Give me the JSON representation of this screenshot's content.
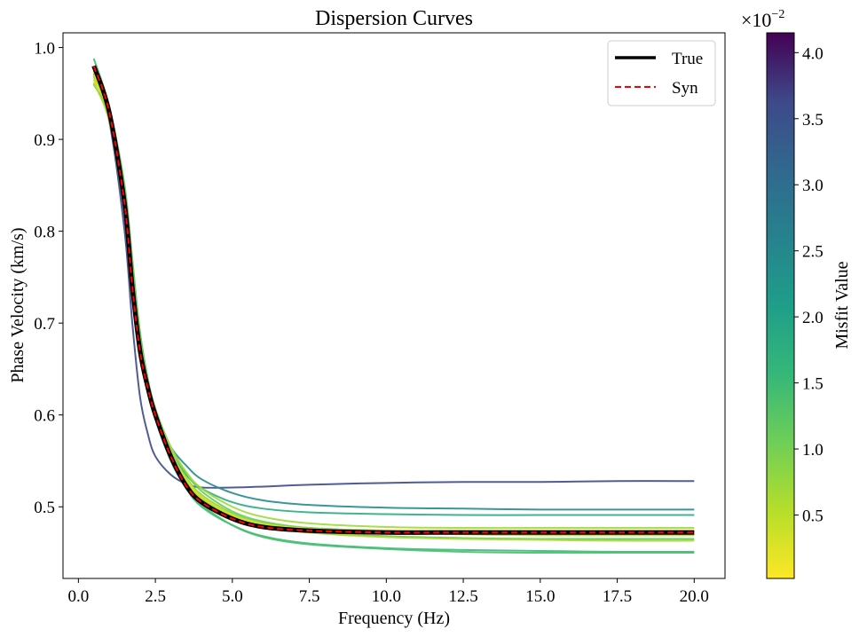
{
  "chart_data": {
    "type": "line",
    "title": "Dispersion Curves",
    "xlabel": "Frequency (Hz)",
    "ylabel": "Phase Velocity (km/s)",
    "xlim": [
      -0.5,
      21.0
    ],
    "ylim": [
      0.422,
      1.016
    ],
    "xticks": [
      0.0,
      2.5,
      5.0,
      7.5,
      10.0,
      12.5,
      15.0,
      17.5,
      20.0
    ],
    "xtick_labels": [
      "0.0",
      "2.5",
      "5.0",
      "7.5",
      "10.0",
      "12.5",
      "15.0",
      "17.5",
      "20.0"
    ],
    "yticks": [
      0.5,
      0.6,
      0.7,
      0.8,
      0.9,
      1.0
    ],
    "ytick_labels": [
      "0.5",
      "0.6",
      "0.7",
      "0.8",
      "0.9",
      "1.0"
    ],
    "grid": false,
    "legend_position": "top-right",
    "series": [
      {
        "name": "True",
        "style": "solid",
        "color": "#000000",
        "x": [
          0.5,
          1.0,
          1.5,
          1.75,
          2.0,
          2.25,
          2.5,
          3.0,
          3.5,
          4.0,
          5.0,
          6.0,
          7.5,
          10.0,
          12.5,
          15.0,
          17.5,
          20.0
        ],
        "y": [
          0.98,
          0.93,
          0.83,
          0.74,
          0.67,
          0.63,
          0.6,
          0.555,
          0.523,
          0.505,
          0.487,
          0.478,
          0.474,
          0.472,
          0.472,
          0.472,
          0.472,
          0.472
        ]
      },
      {
        "name": "Syn",
        "style": "dashed",
        "color": "#ff0000",
        "x": [
          0.5,
          1.0,
          1.5,
          1.75,
          2.0,
          2.25,
          2.5,
          3.0,
          3.5,
          4.0,
          5.0,
          6.0,
          7.5,
          10.0,
          12.5,
          15.0,
          17.5,
          20.0
        ],
        "y": [
          0.98,
          0.93,
          0.83,
          0.74,
          0.67,
          0.63,
          0.6,
          0.555,
          0.523,
          0.505,
          0.487,
          0.478,
          0.474,
          0.472,
          0.472,
          0.472,
          0.472,
          0.472
        ]
      }
    ],
    "ensemble": {
      "x": [
        0.5,
        1.0,
        1.5,
        1.75,
        2.0,
        2.25,
        2.5,
        3.0,
        3.5,
        4.0,
        5.0,
        6.0,
        7.5,
        10.0,
        12.5,
        15.0,
        17.5,
        20.0
      ],
      "curves": [
        {
          "misfit": 0.036,
          "y": [
            0.97,
            0.92,
            0.8,
            0.7,
            0.62,
            0.58,
            0.555,
            0.535,
            0.525,
            0.521,
            0.521,
            0.522,
            0.524,
            0.526,
            0.527,
            0.527,
            0.528,
            0.528
          ]
        },
        {
          "misfit": 0.024,
          "y": [
            0.975,
            0.93,
            0.84,
            0.76,
            0.68,
            0.63,
            0.6,
            0.565,
            0.545,
            0.53,
            0.515,
            0.507,
            0.502,
            0.499,
            0.498,
            0.497,
            0.497,
            0.497
          ]
        },
        {
          "misfit": 0.018,
          "y": [
            0.972,
            0.93,
            0.84,
            0.76,
            0.68,
            0.635,
            0.6,
            0.56,
            0.535,
            0.52,
            0.505,
            0.498,
            0.494,
            0.492,
            0.491,
            0.491,
            0.491,
            0.491
          ]
        },
        {
          "misfit": 0.015,
          "y": [
            0.988,
            0.935,
            0.84,
            0.75,
            0.675,
            0.625,
            0.595,
            0.55,
            0.52,
            0.5,
            0.48,
            0.468,
            0.46,
            0.455,
            0.453,
            0.452,
            0.451,
            0.451
          ]
        },
        {
          "misfit": 0.014,
          "y": [
            0.96,
            0.925,
            0.84,
            0.755,
            0.68,
            0.63,
            0.598,
            0.552,
            0.522,
            0.502,
            0.48,
            0.467,
            0.459,
            0.454,
            0.451,
            0.45,
            0.45,
            0.45
          ]
        },
        {
          "misfit": 0.012,
          "y": [
            0.975,
            0.935,
            0.85,
            0.77,
            0.69,
            0.64,
            0.605,
            0.56,
            0.53,
            0.51,
            0.49,
            0.479,
            0.472,
            0.468,
            0.466,
            0.465,
            0.465,
            0.465
          ]
        },
        {
          "misfit": 0.011,
          "y": [
            0.965,
            0.93,
            0.845,
            0.765,
            0.69,
            0.64,
            0.607,
            0.565,
            0.537,
            0.517,
            0.495,
            0.484,
            0.477,
            0.473,
            0.471,
            0.47,
            0.47,
            0.47
          ]
        },
        {
          "misfit": 0.009,
          "y": [
            0.97,
            0.93,
            0.84,
            0.755,
            0.68,
            0.635,
            0.602,
            0.56,
            0.532,
            0.513,
            0.493,
            0.483,
            0.477,
            0.474,
            0.473,
            0.473,
            0.473,
            0.473
          ]
        },
        {
          "misfit": 0.008,
          "y": [
            0.98,
            0.932,
            0.835,
            0.748,
            0.675,
            0.632,
            0.6,
            0.557,
            0.527,
            0.508,
            0.49,
            0.481,
            0.476,
            0.474,
            0.474,
            0.474,
            0.474,
            0.474
          ]
        },
        {
          "misfit": 0.007,
          "y": [
            0.968,
            0.925,
            0.835,
            0.75,
            0.678,
            0.635,
            0.605,
            0.565,
            0.538,
            0.52,
            0.5,
            0.489,
            0.482,
            0.478,
            0.477,
            0.477,
            0.477,
            0.477
          ]
        },
        {
          "misfit": 0.006,
          "y": [
            0.962,
            0.92,
            0.83,
            0.745,
            0.673,
            0.63,
            0.6,
            0.558,
            0.53,
            0.512,
            0.491,
            0.48,
            0.472,
            0.467,
            0.465,
            0.464,
            0.463,
            0.463
          ]
        },
        {
          "misfit": 0.005,
          "y": [
            0.975,
            0.932,
            0.838,
            0.748,
            0.674,
            0.632,
            0.601,
            0.558,
            0.528,
            0.509,
            0.489,
            0.48,
            0.475,
            0.472,
            0.47,
            0.469,
            0.469,
            0.469
          ]
        },
        {
          "misfit": 0.004,
          "y": [
            0.97,
            0.928,
            0.832,
            0.743,
            0.67,
            0.628,
            0.598,
            0.555,
            0.526,
            0.507,
            0.488,
            0.479,
            0.475,
            0.474,
            0.474,
            0.474,
            0.474,
            0.474
          ]
        },
        {
          "misfit": 0.003,
          "y": [
            0.965,
            0.928,
            0.836,
            0.748,
            0.675,
            0.633,
            0.603,
            0.56,
            0.53,
            0.511,
            0.491,
            0.481,
            0.476,
            0.473,
            0.472,
            0.472,
            0.472,
            0.472
          ]
        },
        {
          "misfit": 0.002,
          "y": [
            0.978,
            0.93,
            0.832,
            0.743,
            0.672,
            0.63,
            0.6,
            0.556,
            0.525,
            0.506,
            0.487,
            0.478,
            0.474,
            0.472,
            0.471,
            0.471,
            0.471,
            0.471
          ]
        },
        {
          "misfit": 0.001,
          "y": [
            0.974,
            0.93,
            0.831,
            0.741,
            0.67,
            0.63,
            0.6,
            0.556,
            0.525,
            0.506,
            0.487,
            0.478,
            0.474,
            0.472,
            0.472,
            0.472,
            0.472,
            0.472
          ]
        }
      ]
    },
    "colorbar": {
      "label": "Misfit Value",
      "colormap": "viridis_r",
      "range": [
        0.0002,
        0.0415
      ],
      "ticks": [
        0.005,
        0.01,
        0.015,
        0.02,
        0.025,
        0.03,
        0.035,
        0.04
      ],
      "tick_labels": [
        "0.5",
        "1.0",
        "1.5",
        "2.0",
        "2.5",
        "3.0",
        "3.5",
        "4.0"
      ],
      "offset_base": "×10",
      "offset_exponent": "−2"
    }
  }
}
